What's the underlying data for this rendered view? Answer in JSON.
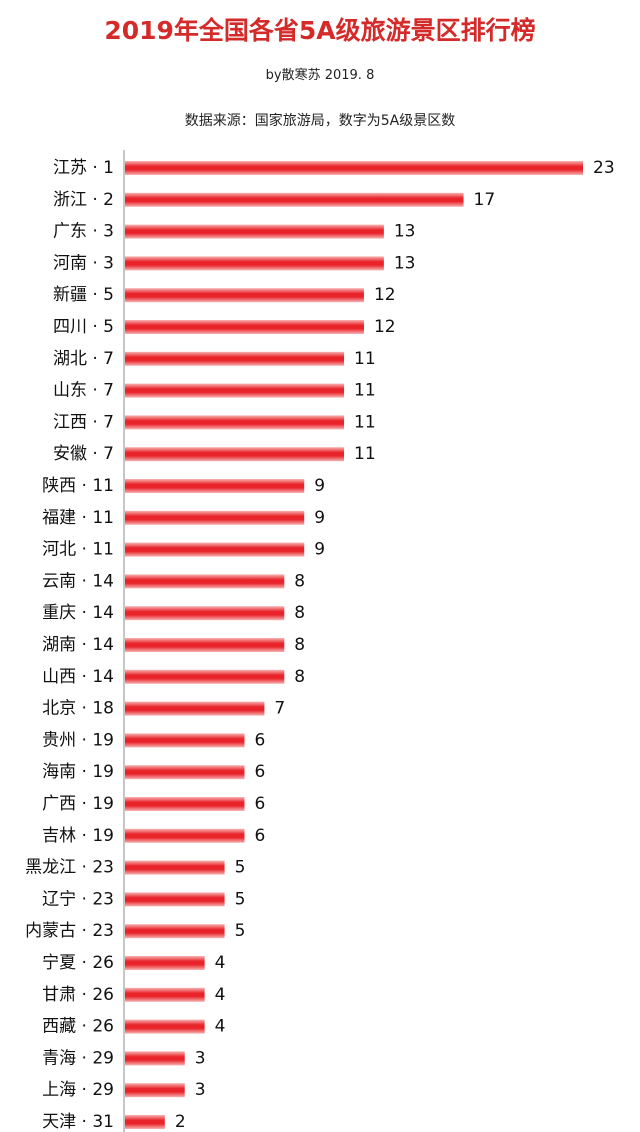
{
  "colors": {
    "title": "#d42a2a",
    "bar": "#e8242a",
    "bar_edge": "#f7b3b3",
    "axis": "#8c8c8c",
    "text": "#111111"
  },
  "chart_data": {
    "type": "bar",
    "orientation": "horizontal",
    "title": "2019年全国各省5A级旅游景区排行榜",
    "subtitle": "by散寒苏  2019. 8",
    "source": "数据来源：国家旅游局，数字为5A级景区数",
    "grid": false,
    "legend": "none",
    "xlim": [
      0,
      23
    ],
    "categories": [
      "江苏 · 1",
      "浙江 · 2",
      "广东 · 3",
      "河南 · 3",
      "新疆 · 5",
      "四川 · 5",
      "湖北 · 7",
      "山东 · 7",
      "江西 · 7",
      "安徽 · 7",
      "陕西 · 11",
      "福建 · 11",
      "河北 · 11",
      "云南 · 14",
      "重庆 · 14",
      "湖南 · 14",
      "山西 · 14",
      "北京 · 18",
      "贵州 · 19",
      "海南 · 19",
      "广西 · 19",
      "吉林 · 19",
      "黑龙江 · 23",
      "辽宁 · 23",
      "内蒙古 · 23",
      "宁夏 · 26",
      "甘肃 · 26",
      "西藏 · 26",
      "青海 · 29",
      "上海 · 29",
      "天津 · 31"
    ],
    "values": [
      23,
      17,
      13,
      13,
      12,
      12,
      11,
      11,
      11,
      11,
      9,
      9,
      9,
      8,
      8,
      8,
      8,
      7,
      6,
      6,
      6,
      6,
      5,
      5,
      5,
      4,
      4,
      4,
      3,
      3,
      2
    ]
  }
}
